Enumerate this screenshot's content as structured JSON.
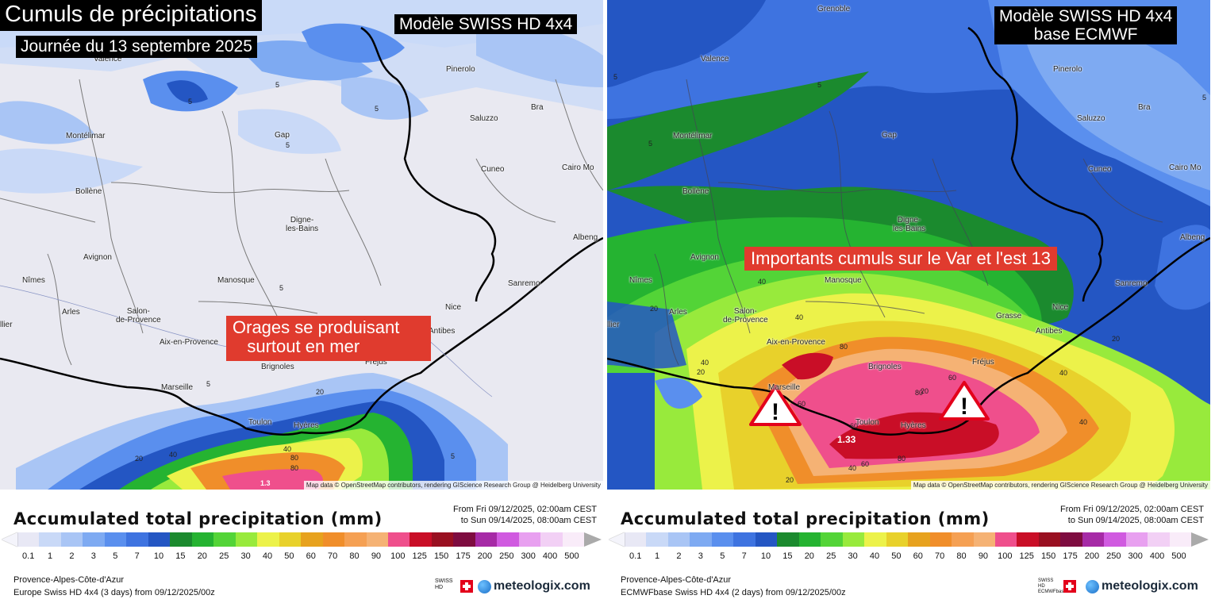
{
  "left": {
    "title": "Cumuls de précipitations",
    "date": "Journée du 13 septembre 2025",
    "model": "Modèle SWISS HD 4x4",
    "annotation": "Orages se produisant\n   surtout en mer",
    "cities": [
      "Valence",
      "Pinerolo",
      "Bra",
      "Saluzzo",
      "Montélimar",
      "Gap",
      "Cuneo",
      "Cairo Mo",
      "Bollène",
      "Digne-\nles-Bains",
      "Albeng",
      "Avignon",
      "Nîmes",
      "Manosque",
      "Sanremo",
      "Arles",
      "Salon-\nde-Provence",
      "Nice",
      "Antibes",
      "Aix-en-Provence",
      "Brignoles",
      "Fréjus",
      "Marseille",
      "Toulon",
      "Hyères",
      "llier"
    ],
    "contour_labels": [
      "5",
      "5",
      "5",
      "5",
      "5",
      "5",
      "20",
      "20",
      "40",
      "40",
      "80",
      "80",
      "5",
      "1.3"
    ],
    "attribution": "Map data © OpenStreetMap contributors, rendering GIScience Research Group @ Heidelberg University"
  },
  "right": {
    "model_line1": "Modèle SWISS HD 4x4",
    "model_line2": "base ECMWF",
    "annotation": "Importants cumuls sur le Var et l'est 13",
    "cities": [
      "Grenoble",
      "Valence",
      "Pinerolo",
      "Bra",
      "Saluzzo",
      "Montélimar",
      "Gap",
      "Cuneo",
      "Cairo Mo",
      "Bollène",
      "Digne-\nles-Bains",
      "Albeng",
      "Avignon",
      "Nîmes",
      "Manosque",
      "Sanremo",
      "Arles",
      "Salon-\nde-Provence",
      "Nice",
      "Grasse",
      "Antibes",
      "Aix-en-Provence",
      "Brignoles",
      "Fréjus",
      "Marseille",
      "Toulon",
      "Hyères",
      "llier"
    ],
    "contour_labels": [
      "5",
      "5",
      "5",
      "5",
      "40",
      "40",
      "20",
      "20",
      "80",
      "80",
      "60",
      "60",
      "40",
      "40",
      "40",
      "20",
      "20",
      "60",
      "60",
      "80",
      "40",
      "20",
      "1.33"
    ],
    "attribution": "Map data © OpenStreetMap contributors, rendering GIScience Research Group @ Heidelberg University"
  },
  "legend": {
    "title": "Accumulated total precipitation (mm)",
    "left_range_from": "From Fri 09/12/2025, 02:00am CEST",
    "left_range_to": "to Sun 09/14/2025, 08:00am CEST",
    "right_range_from": "From Fri 09/12/2025, 02:00am CEST",
    "right_range_to": "to Sun 09/14/2025, 08:00am CEST",
    "ticks": [
      "0.1",
      "1",
      "2",
      "3",
      "5",
      "7",
      "10",
      "15",
      "20",
      "25",
      "30",
      "40",
      "50",
      "60",
      "70",
      "80",
      "90",
      "100",
      "125",
      "150",
      "175",
      "200",
      "250",
      "300",
      "400",
      "500"
    ],
    "colors": [
      "#e8e8f5",
      "#c9d9f7",
      "#a9c5f5",
      "#7eaaf2",
      "#5a8fee",
      "#3e73e0",
      "#2456c3",
      "#1b8a2e",
      "#25b331",
      "#53d437",
      "#98ea3c",
      "#ecf24a",
      "#e8d12b",
      "#e7a21e",
      "#f08e2a",
      "#f5a053",
      "#f5b274",
      "#ef4f8c",
      "#c90e27",
      "#991021",
      "#7e0c40",
      "#a62aa6",
      "#d05ae0",
      "#e8a0f0",
      "#f2d0f5",
      "#f9ecf9",
      "#d9d9d9"
    ],
    "region": "Provence-Alpes-Côte-d'Azur",
    "left_run": "Europe Swiss HD 4x4 (3 days) from 09/12/2025/00z",
    "right_run": "ECMWFbase Swiss HD 4x4 (2 days) from 09/12/2025/00z",
    "swiss_logo_text": "SWISS\nHD",
    "swiss_logo_text_right": "SWISS\nHD\nECMWFbase",
    "brand": "meteologix.com"
  }
}
